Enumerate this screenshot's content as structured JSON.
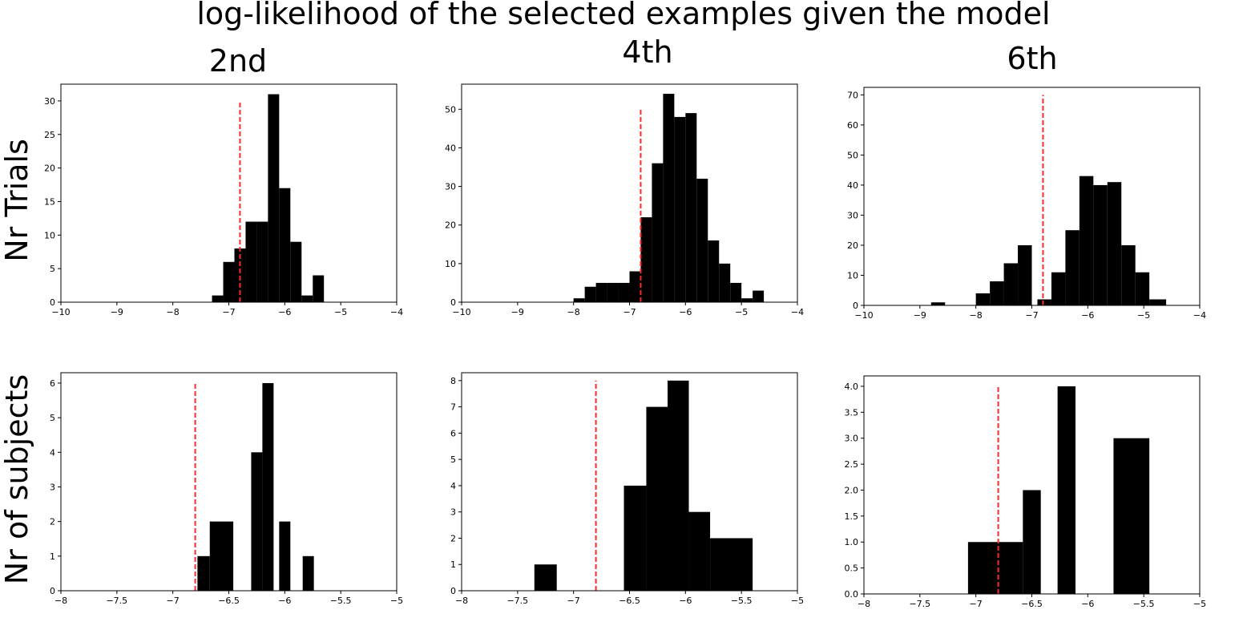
{
  "title": "log-likelihood of the selected examples given the model",
  "column_titles": [
    "2nd",
    "4th",
    "6th"
  ],
  "row_labels": [
    "Nr Trials",
    "Nr of subjects"
  ],
  "colors": {
    "bars": "#000000",
    "reference_line": "#ff2a2a"
  },
  "chart_data": [
    {
      "type": "bar",
      "row": 0,
      "col": 0,
      "xlim": [
        -10,
        -4
      ],
      "ylim": [
        0,
        32.5
      ],
      "xticks": [
        -10,
        -9,
        -8,
        -7,
        -6,
        -5,
        -4
      ],
      "yticks": [
        0,
        5,
        10,
        15,
        20,
        25,
        30
      ],
      "bins": [
        {
          "x0": -7.3,
          "x1": -7.1,
          "y": 1
        },
        {
          "x0": -7.1,
          "x1": -6.9,
          "y": 6
        },
        {
          "x0": -6.9,
          "x1": -6.7,
          "y": 8
        },
        {
          "x0": -6.7,
          "x1": -6.5,
          "y": 12
        },
        {
          "x0": -6.5,
          "x1": -6.3,
          "y": 12
        },
        {
          "x0": -6.3,
          "x1": -6.1,
          "y": 31
        },
        {
          "x0": -6.1,
          "x1": -5.9,
          "y": 17
        },
        {
          "x0": -5.9,
          "x1": -5.7,
          "y": 9
        },
        {
          "x0": -5.7,
          "x1": -5.5,
          "y": 1
        },
        {
          "x0": -5.5,
          "x1": -5.3,
          "y": 4
        }
      ],
      "vline": {
        "x": -6.8,
        "y_top": 30
      }
    },
    {
      "type": "bar",
      "row": 0,
      "col": 1,
      "xlim": [
        -10,
        -4
      ],
      "ylim": [
        0,
        56.5
      ],
      "xticks": [
        -10,
        -9,
        -8,
        -7,
        -6,
        -5,
        -4
      ],
      "yticks": [
        0,
        10,
        20,
        30,
        40,
        50
      ],
      "bins": [
        {
          "x0": -8.0,
          "x1": -7.8,
          "y": 1
        },
        {
          "x0": -7.8,
          "x1": -7.6,
          "y": 4
        },
        {
          "x0": -7.6,
          "x1": -7.4,
          "y": 5
        },
        {
          "x0": -7.4,
          "x1": -7.2,
          "y": 5
        },
        {
          "x0": -7.2,
          "x1": -7.0,
          "y": 5
        },
        {
          "x0": -7.0,
          "x1": -6.8,
          "y": 8
        },
        {
          "x0": -6.8,
          "x1": -6.6,
          "y": 22
        },
        {
          "x0": -6.6,
          "x1": -6.4,
          "y": 36
        },
        {
          "x0": -6.4,
          "x1": -6.2,
          "y": 54
        },
        {
          "x0": -6.2,
          "x1": -6.0,
          "y": 48
        },
        {
          "x0": -6.0,
          "x1": -5.8,
          "y": 49
        },
        {
          "x0": -5.8,
          "x1": -5.6,
          "y": 32
        },
        {
          "x0": -5.6,
          "x1": -5.4,
          "y": 16
        },
        {
          "x0": -5.4,
          "x1": -5.2,
          "y": 10
        },
        {
          "x0": -5.2,
          "x1": -5.0,
          "y": 5
        },
        {
          "x0": -5.0,
          "x1": -4.8,
          "y": 1
        },
        {
          "x0": -4.8,
          "x1": -4.6,
          "y": 3
        }
      ],
      "vline": {
        "x": -6.8,
        "y_top": 50
      }
    },
    {
      "type": "bar",
      "row": 0,
      "col": 2,
      "xlim": [
        -10,
        -4
      ],
      "ylim": [
        0,
        72.5
      ],
      "xticks": [
        -10,
        -9,
        -8,
        -7,
        -6,
        -5,
        -4
      ],
      "yticks": [
        0,
        10,
        20,
        30,
        40,
        50,
        60,
        70
      ],
      "bins": [
        {
          "x0": -8.8,
          "x1": -8.55,
          "y": 1
        },
        {
          "x0": -8.0,
          "x1": -7.75,
          "y": 4
        },
        {
          "x0": -7.75,
          "x1": -7.5,
          "y": 8
        },
        {
          "x0": -7.5,
          "x1": -7.25,
          "y": 14
        },
        {
          "x0": -7.25,
          "x1": -7.0,
          "y": 20
        },
        {
          "x0": -6.9,
          "x1": -6.65,
          "y": 2
        },
        {
          "x0": -6.65,
          "x1": -6.4,
          "y": 11
        },
        {
          "x0": -6.4,
          "x1": -6.15,
          "y": 25
        },
        {
          "x0": -6.15,
          "x1": -5.9,
          "y": 43
        },
        {
          "x0": -5.9,
          "x1": -5.65,
          "y": 40
        },
        {
          "x0": -5.65,
          "x1": -5.4,
          "y": 41
        },
        {
          "x0": -5.4,
          "x1": -5.15,
          "y": 20
        },
        {
          "x0": -5.15,
          "x1": -4.9,
          "y": 11
        },
        {
          "x0": -4.9,
          "x1": -4.6,
          "y": 2
        }
      ],
      "vline": {
        "x": -6.8,
        "y_top": 70
      }
    },
    {
      "type": "bar",
      "row": 1,
      "col": 0,
      "xlim": [
        -8.0,
        -5.0
      ],
      "ylim": [
        0,
        6.3
      ],
      "xticks": [
        -8.0,
        -7.5,
        -7.0,
        -6.5,
        -6.0,
        -5.5,
        -5.0
      ],
      "yticks": [
        0,
        1,
        2,
        3,
        4,
        5,
        6
      ],
      "bins": [
        {
          "x0": -6.78,
          "x1": -6.67,
          "y": 1
        },
        {
          "x0": -6.67,
          "x1": -6.46,
          "y": 2
        },
        {
          "x0": -6.3,
          "x1": -6.2,
          "y": 4
        },
        {
          "x0": -6.2,
          "x1": -6.1,
          "y": 6
        },
        {
          "x0": -6.05,
          "x1": -5.95,
          "y": 2
        },
        {
          "x0": -5.84,
          "x1": -5.74,
          "y": 1
        }
      ],
      "vline": {
        "x": -6.8,
        "y_top": 6
      }
    },
    {
      "type": "bar",
      "row": 1,
      "col": 1,
      "xlim": [
        -8.0,
        -5.0
      ],
      "ylim": [
        0,
        8.3
      ],
      "xticks": [
        -8.0,
        -7.5,
        -7.0,
        -6.5,
        -6.0,
        -5.5,
        -5.0
      ],
      "yticks": [
        0,
        1,
        2,
        3,
        4,
        5,
        6,
        7,
        8
      ],
      "bins": [
        {
          "x0": -7.35,
          "x1": -7.15,
          "y": 1
        },
        {
          "x0": -6.55,
          "x1": -6.35,
          "y": 4
        },
        {
          "x0": -6.35,
          "x1": -6.16,
          "y": 7
        },
        {
          "x0": -6.16,
          "x1": -5.97,
          "y": 8
        },
        {
          "x0": -5.97,
          "x1": -5.78,
          "y": 3
        },
        {
          "x0": -5.78,
          "x1": -5.4,
          "y": 2
        }
      ],
      "vline": {
        "x": -6.8,
        "y_top": 8
      }
    },
    {
      "type": "bar",
      "row": 1,
      "col": 2,
      "xlim": [
        -8.0,
        -5.0
      ],
      "ylim": [
        0,
        4.2
      ],
      "xticks": [
        -8.0,
        -7.5,
        -7.0,
        -6.5,
        -6.0,
        -5.5,
        -5.0
      ],
      "yticks": [
        "0.0",
        "0.5",
        "1.0",
        "1.5",
        "2.0",
        "2.5",
        "3.0",
        "3.5",
        "4.0"
      ],
      "bins": [
        {
          "x0": -7.07,
          "x1": -6.58,
          "y": 1
        },
        {
          "x0": -6.58,
          "x1": -6.42,
          "y": 2
        },
        {
          "x0": -6.27,
          "x1": -6.11,
          "y": 4
        },
        {
          "x0": -5.77,
          "x1": -5.45,
          "y": 3
        }
      ],
      "vline": {
        "x": -6.8,
        "y_top": 4
      }
    }
  ]
}
